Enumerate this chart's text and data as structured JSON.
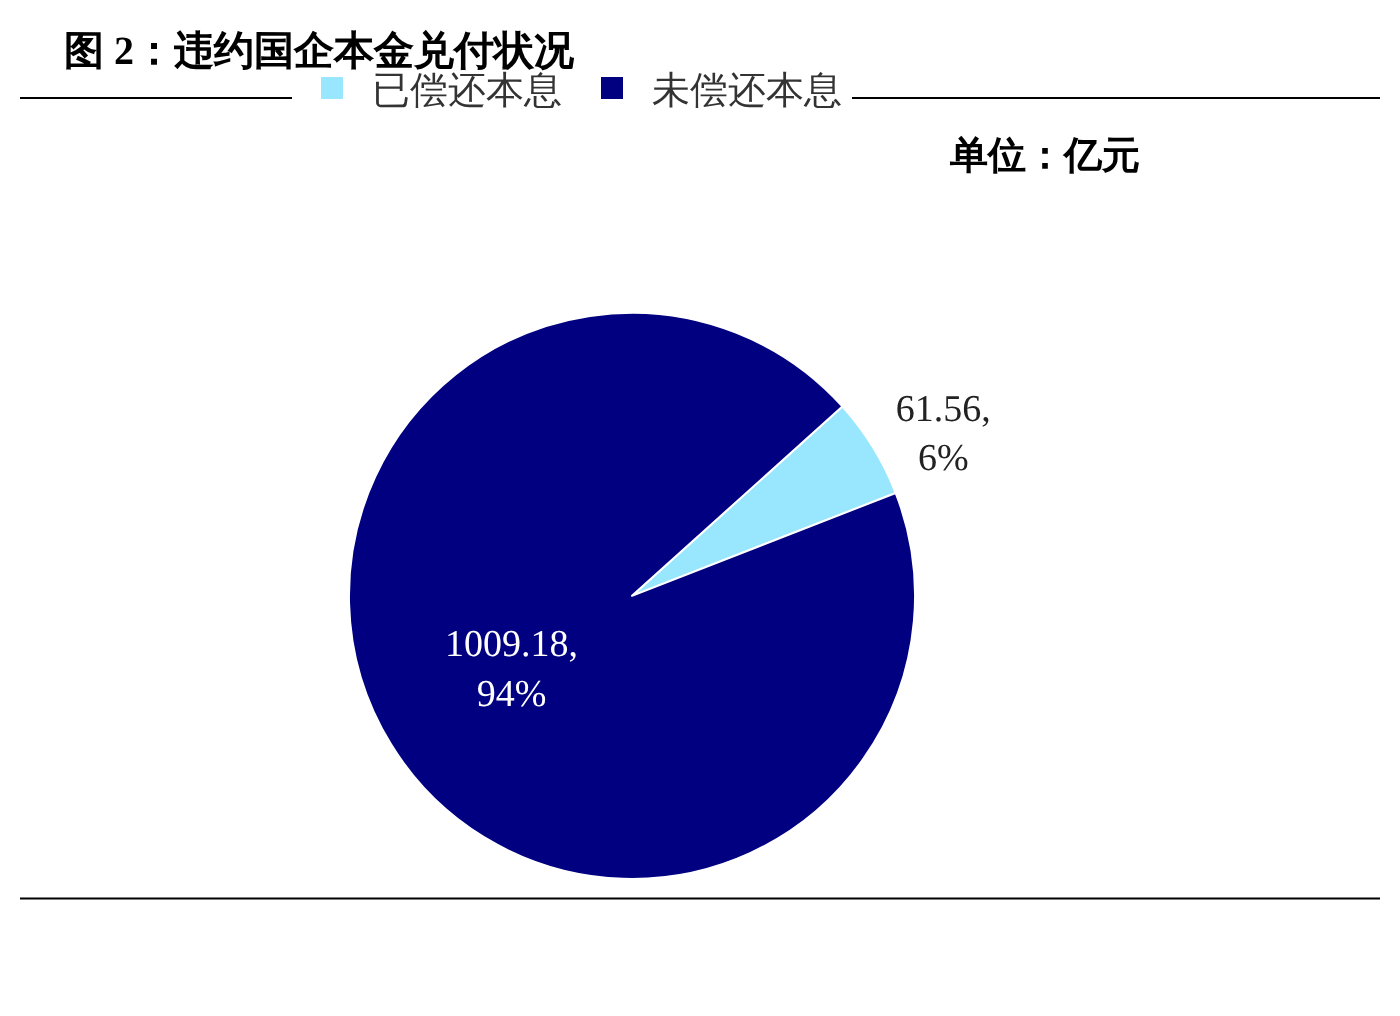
{
  "chart_data": {
    "type": "pie",
    "title": "图 2：违约国企本金兑付状况",
    "categories": [
      "已偿还本息",
      "未偿还本息"
    ],
    "values": [
      61.56,
      1009.18
    ],
    "colors": [
      "#99e6ff",
      "#000080"
    ],
    "value_labels": [
      "61.56,\n6%",
      "1009.18,\n94%"
    ],
    "annotations": [
      "单位：亿元"
    ],
    "legend": "top"
  }
}
